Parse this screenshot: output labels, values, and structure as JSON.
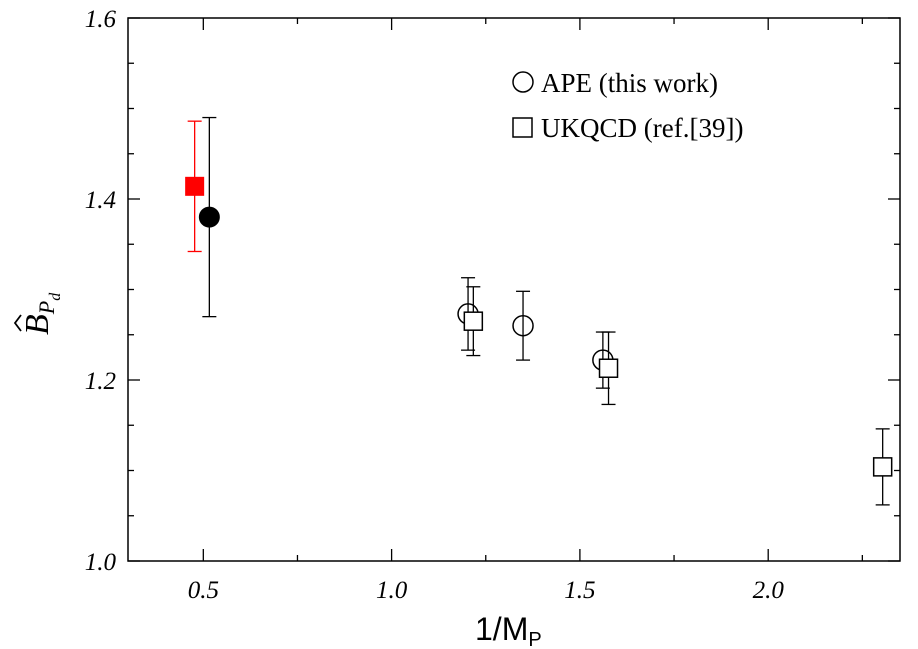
{
  "chart_data": {
    "type": "scatter",
    "xlabel_main": "1/M",
    "xlabel_sub": "P",
    "ylabel_main": "B",
    "ylabel_sub": "P",
    "ylabel_subsub": "d",
    "xlim": [
      0.3,
      2.35
    ],
    "ylim": [
      1.0,
      1.6
    ],
    "xticks": [
      0.5,
      1.0,
      1.5,
      2.0
    ],
    "xtick_labels": [
      "0.5",
      "1.0",
      "1.5",
      "2.0"
    ],
    "yticks": [
      1.0,
      1.2,
      1.4,
      1.6
    ],
    "ytick_labels": [
      "1.0",
      "1.2",
      "1.4",
      "1.6"
    ],
    "grid": false,
    "legend_position": "top-right",
    "series": [
      {
        "name": "APE (this work)",
        "marker": "circle",
        "points": [
          {
            "x": 1.203,
            "y": 1.273,
            "err": 0.04
          },
          {
            "x": 1.349,
            "y": 1.26,
            "err": 0.038
          },
          {
            "x": 1.561,
            "y": 1.222,
            "err": 0.031
          }
        ]
      },
      {
        "name": "UKQCD (ref.[39])",
        "marker": "square",
        "points": [
          {
            "x": 1.217,
            "y": 1.265,
            "err": 0.038
          },
          {
            "x": 1.576,
            "y": 1.213,
            "err": 0.04
          },
          {
            "x": 2.304,
            "y": 1.104,
            "err": 0.042
          }
        ]
      },
      {
        "name": "",
        "marker": "circle-filled",
        "color": "#000000",
        "points": [
          {
            "x": 0.516,
            "y": 1.38,
            "err": 0.11
          }
        ]
      },
      {
        "name": "",
        "marker": "square-filled",
        "color": "#ff0000",
        "points": [
          {
            "x": 0.477,
            "y": 1.414,
            "err": 0.072
          }
        ]
      }
    ]
  }
}
